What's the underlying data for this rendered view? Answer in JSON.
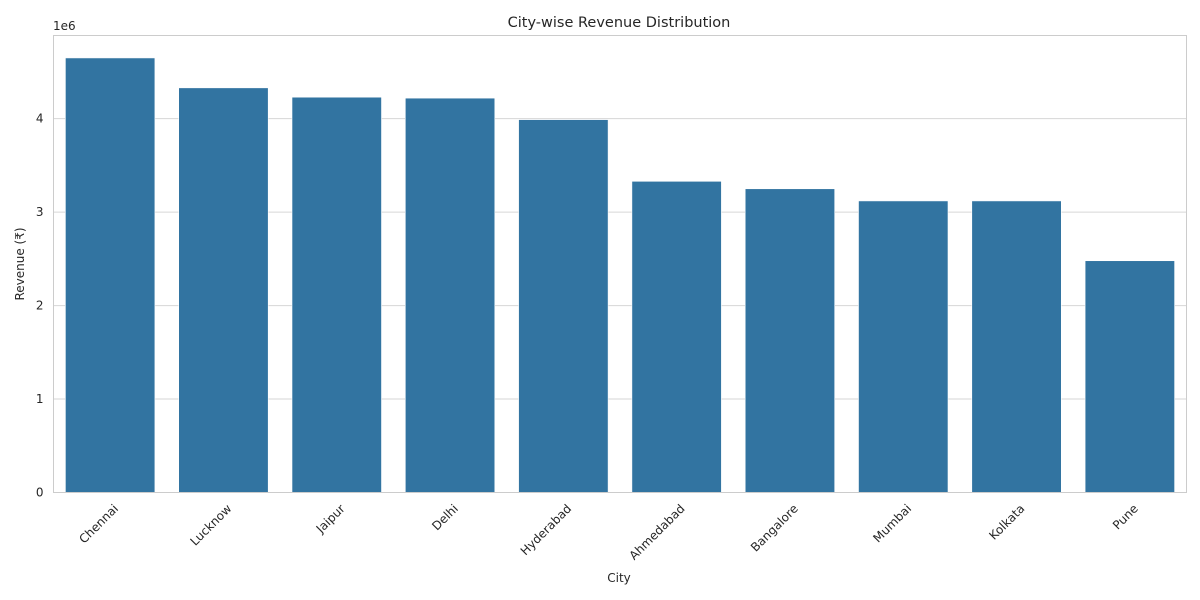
{
  "chart_data": {
    "type": "bar",
    "title": "City-wise Revenue Distribution",
    "xlabel": "City",
    "ylabel": "Revenue (₹)",
    "y_offset_label": "1e6",
    "categories": [
      "Chennai",
      "Lucknow",
      "Jaipur",
      "Delhi",
      "Hyderabad",
      "Ahmedabad",
      "Bangalore",
      "Mumbai",
      "Kolkata",
      "Pune"
    ],
    "values": [
      4650000,
      4330000,
      4230000,
      4220000,
      3990000,
      3330000,
      3250000,
      3120000,
      3120000,
      2480000
    ],
    "ylim": [
      0,
      4890000
    ],
    "yticks": [
      0,
      1000000,
      2000000,
      3000000,
      4000000
    ],
    "ytick_labels": [
      "0",
      "1",
      "2",
      "3",
      "4"
    ],
    "grid": true,
    "bar_color": "#3274a1",
    "x_tick_rotation": -45
  }
}
